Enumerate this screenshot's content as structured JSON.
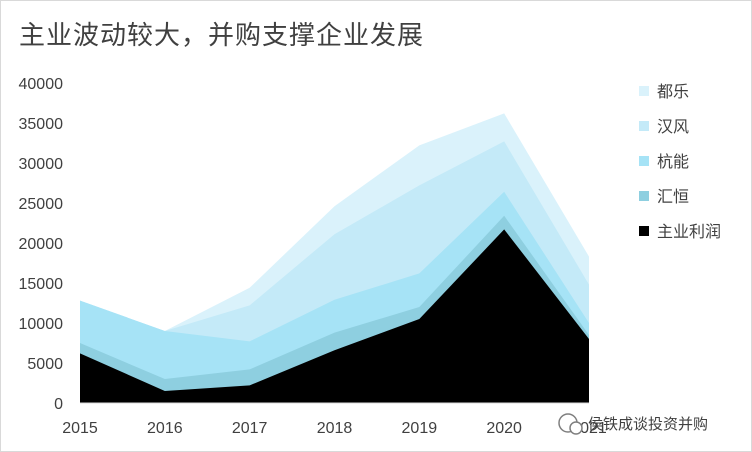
{
  "title": "主业波动较大，并购支撑企业发展",
  "watermark": "侯铁成谈投资并购",
  "chart_data": {
    "type": "area",
    "stacked": true,
    "x": [
      "2015",
      "2016",
      "2017",
      "2018",
      "2019",
      "2020",
      "2021"
    ],
    "ylim": [
      0,
      40000
    ],
    "yticks": [
      0,
      5000,
      10000,
      15000,
      20000,
      25000,
      30000,
      35000,
      40000
    ],
    "legend_position": "right",
    "series": [
      {
        "name": "主业利润",
        "color": "#000000",
        "values": [
          6200,
          1500,
          2200,
          6600,
          10500,
          21700,
          8000
        ]
      },
      {
        "name": "汇恒",
        "color": "#8ecfe0",
        "values": [
          1300,
          1500,
          2000,
          2200,
          1500,
          1700,
          500
        ]
      },
      {
        "name": "杭能",
        "color": "#a6e3f6",
        "values": [
          5300,
          6000,
          3500,
          4100,
          4200,
          3000,
          1500
        ]
      },
      {
        "name": "汉风",
        "color": "#c4eaf8",
        "values": [
          0,
          0,
          4500,
          8200,
          11000,
          6300,
          4800
        ]
      },
      {
        "name": "都乐",
        "color": "#daf2fb",
        "values": [
          0,
          0,
          2200,
          3500,
          5000,
          3500,
          3500
        ]
      }
    ]
  }
}
